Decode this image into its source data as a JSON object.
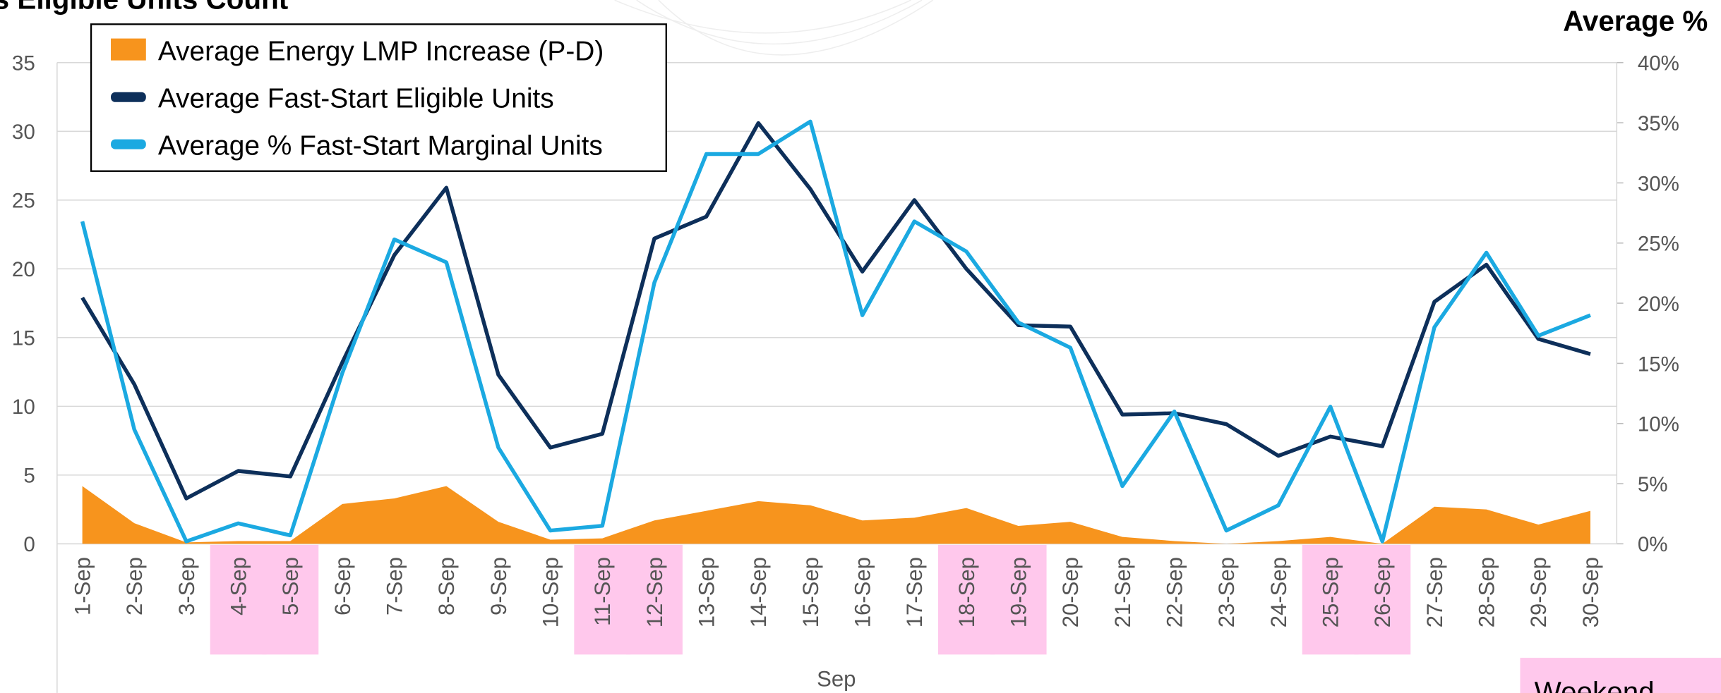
{
  "chart_data": {
    "type": "combo",
    "title": "s Eligible Units Count",
    "y2_title": "Average %",
    "xlabel": "Sep",
    "weekend_label": "Weekend",
    "weekend_color": "#ffc8ec",
    "highlighted_categories": [
      "4-Sep",
      "5-Sep",
      "11-Sep",
      "12-Sep",
      "18-Sep",
      "19-Sep",
      "25-Sep",
      "26-Sep"
    ],
    "categories": [
      "1-Sep",
      "2-Sep",
      "3-Sep",
      "4-Sep",
      "5-Sep",
      "6-Sep",
      "7-Sep",
      "8-Sep",
      "9-Sep",
      "10-Sep",
      "11-Sep",
      "12-Sep",
      "13-Sep",
      "14-Sep",
      "15-Sep",
      "16-Sep",
      "17-Sep",
      "18-Sep",
      "19-Sep",
      "20-Sep",
      "21-Sep",
      "22-Sep",
      "23-Sep",
      "24-Sep",
      "25-Sep",
      "26-Sep",
      "27-Sep",
      "28-Sep",
      "29-Sep",
      "30-Sep"
    ],
    "ylim": [
      0,
      35
    ],
    "yticks": [
      0,
      5,
      10,
      15,
      20,
      25,
      30,
      35
    ],
    "y2lim": [
      0,
      40
    ],
    "y2ticks": [
      {
        "value": 0,
        "label": "0%"
      },
      {
        "value": 5,
        "label": "5%"
      },
      {
        "value": 10,
        "label": "10%"
      },
      {
        "value": 15,
        "label": "15%"
      },
      {
        "value": 20,
        "label": "20%"
      },
      {
        "value": 25,
        "label": "25%"
      },
      {
        "value": 30,
        "label": "30%"
      },
      {
        "value": 35,
        "label": "35%"
      },
      {
        "value": 40,
        "label": "40%"
      }
    ],
    "grid": true,
    "legend": "top-left",
    "series": [
      {
        "name": "Average Energy LMP Increase  (P-D)",
        "kind": "area",
        "color": "#f7941d",
        "values": [
          4.2,
          1.5,
          0.1,
          0.2,
          0.2,
          2.9,
          3.3,
          4.2,
          1.6,
          0.3,
          0.4,
          1.7,
          2.4,
          3.1,
          2.8,
          1.7,
          1.9,
          2.6,
          1.3,
          1.6,
          0.5,
          0.2,
          0,
          0.2,
          0.5,
          0,
          2.7,
          2.5,
          1.4,
          2.4
        ]
      },
      {
        "name": "Average Fast-Start Eligible Units",
        "kind": "line",
        "color": "#0d2f5a",
        "values": [
          17.9,
          11.6,
          3.3,
          5.3,
          4.9,
          13.2,
          21,
          25.9,
          12.3,
          7,
          8,
          22.2,
          23.8,
          30.6,
          25.8,
          19.8,
          25,
          20,
          15.9,
          15.8,
          9.4,
          9.5,
          8.7,
          6.4,
          7.8,
          7.1,
          17.6,
          20.3,
          14.9,
          13.8
        ]
      },
      {
        "name": "Average % Fast-Start Marginal Units",
        "kind": "line",
        "axis": "y2",
        "color": "#1ba9e1",
        "values": [
          26.8,
          9.5,
          0.2,
          1.7,
          0.7,
          14.2,
          25.3,
          23.4,
          8,
          1.1,
          1.5,
          21.7,
          32.4,
          32.4,
          35.1,
          19,
          26.8,
          24.3,
          18.4,
          16.3,
          4.8,
          11,
          1.1,
          3.2,
          11.4,
          0.2,
          18,
          24.2,
          17.3,
          19
        ]
      }
    ]
  }
}
